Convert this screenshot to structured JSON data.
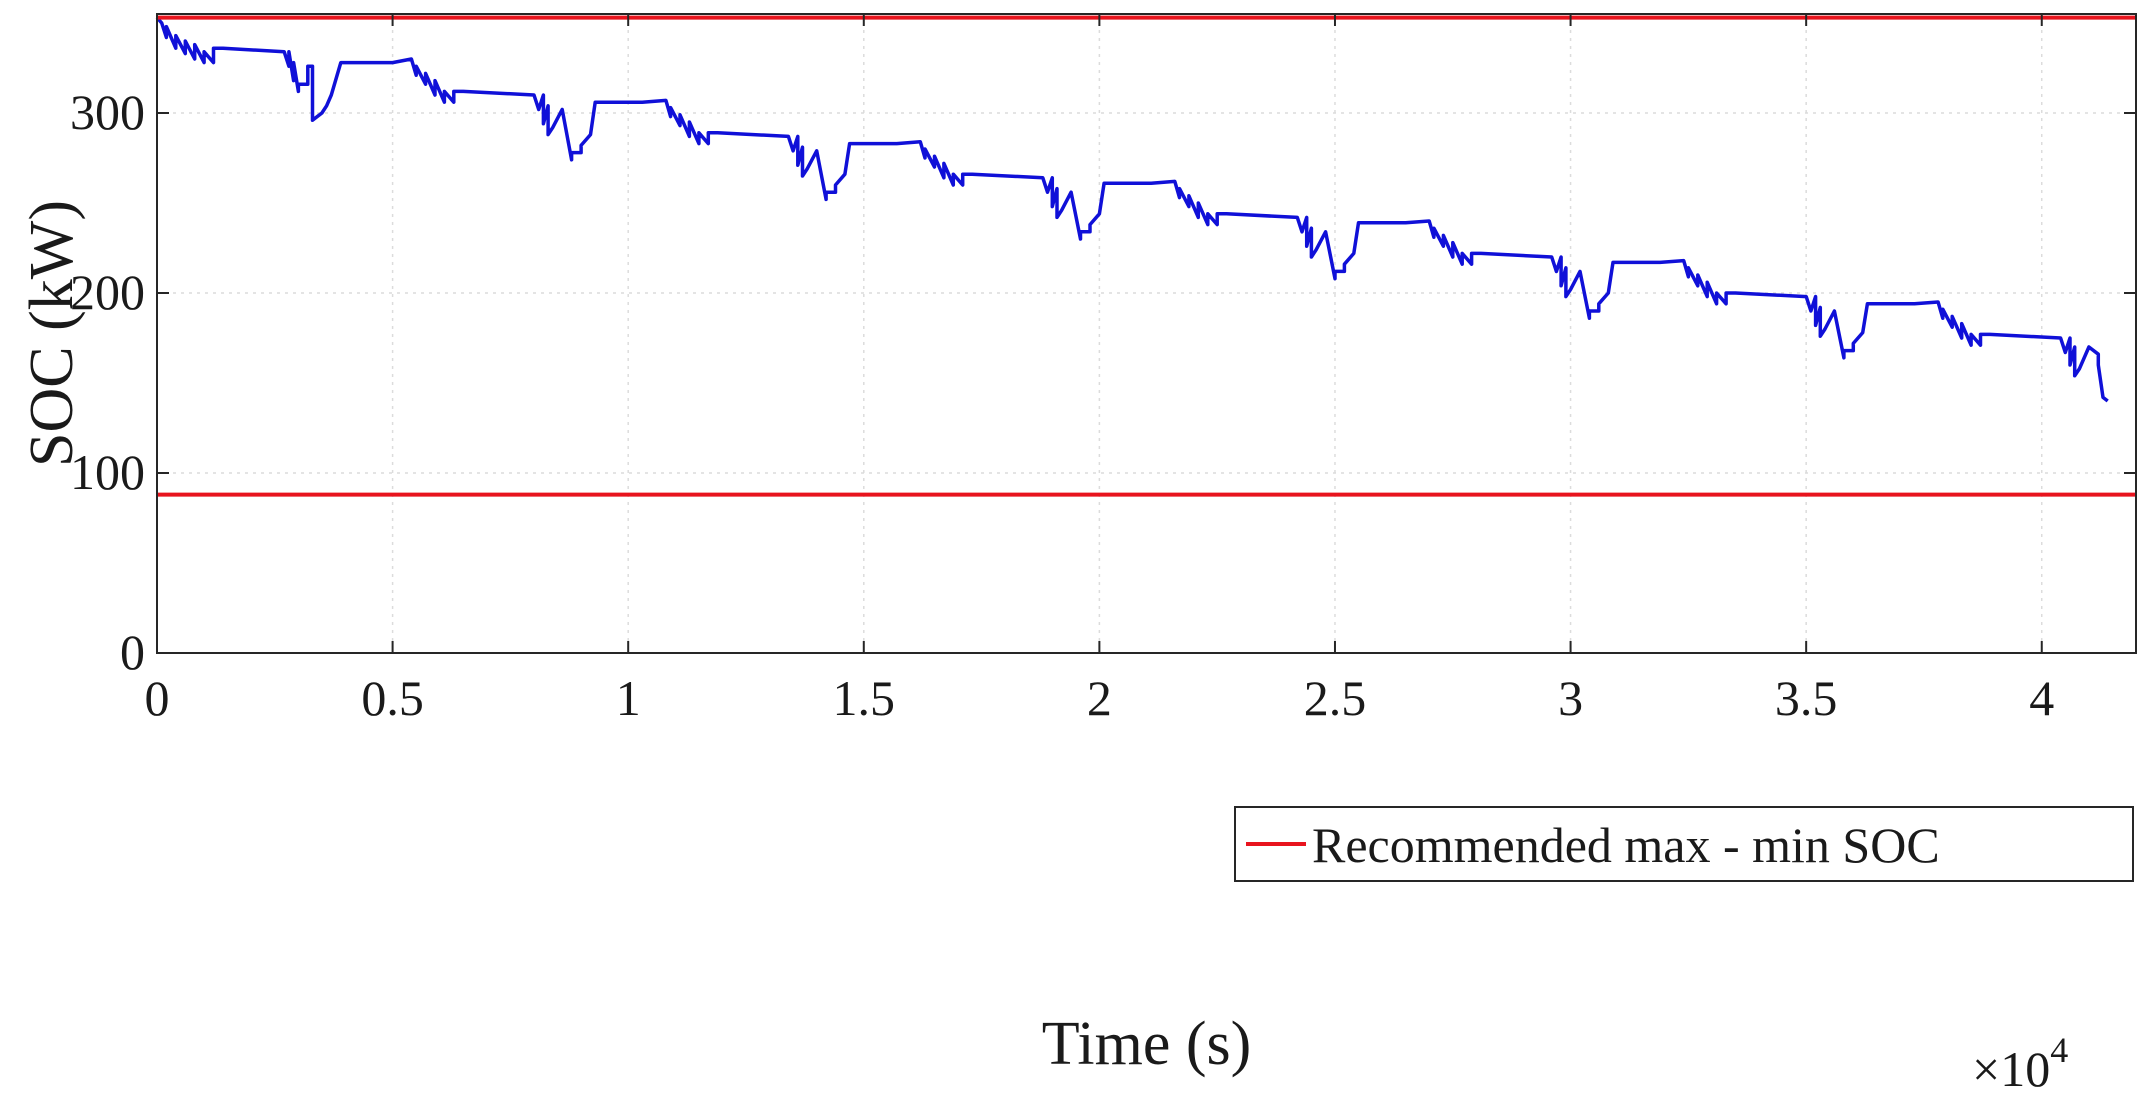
{
  "chart_data": {
    "type": "line",
    "title": "",
    "xlabel": "Time (s)",
    "ylabel": "SOC (kW)",
    "x_multiplier": {
      "times": "×10",
      "exponent": "4"
    },
    "xlim": [
      0,
      4.2
    ],
    "ylim": [
      0,
      355
    ],
    "x_ticks": [
      0,
      0.5,
      1,
      1.5,
      2,
      2.5,
      3,
      3.5,
      4
    ],
    "x_tick_labels": [
      "0",
      "0.5",
      "1",
      "1.5",
      "2",
      "2.5",
      "3",
      "3.5",
      "4"
    ],
    "y_ticks": [
      0,
      100,
      200,
      300
    ],
    "y_tick_labels": [
      "0",
      "100",
      "200",
      "300"
    ],
    "grid": true,
    "legend": {
      "placement": "bottom-right",
      "entries": [
        "Recommended max - min SOC"
      ]
    },
    "colors": {
      "soc": "#1010d8",
      "limits": "#e8141e",
      "grid": "#dcdcdc"
    },
    "series": [
      {
        "kind": "soc",
        "x": [
          0,
          0.01,
          0.02,
          0.02,
          0.04,
          0.04,
          0.06,
          0.06,
          0.08,
          0.08,
          0.1,
          0.1,
          0.12,
          0.12,
          0.14,
          0.14,
          0.27,
          0.28,
          0.28,
          0.29,
          0.29,
          0.3,
          0.3,
          0.32,
          0.32,
          0.33,
          0.33,
          0.35,
          0.35,
          0.36,
          0.37,
          0.39,
          0.5,
          0.54,
          0.55,
          0.55,
          0.57,
          0.57,
          0.59,
          0.59,
          0.61,
          0.61,
          0.63,
          0.63,
          0.65,
          0.65,
          0.8,
          0.81,
          0.82,
          0.82,
          0.83,
          0.83,
          0.84,
          0.84,
          0.86,
          0.86,
          0.88,
          0.88,
          0.9,
          0.9,
          0.92,
          0.93,
          1.03,
          1.08,
          1.09,
          1.09,
          1.11,
          1.11,
          1.13,
          1.13,
          1.15,
          1.15,
          1.17,
          1.17,
          1.19,
          1.19,
          1.34,
          1.35,
          1.36,
          1.36,
          1.37,
          1.37,
          1.38,
          1.38,
          1.4,
          1.4,
          1.42,
          1.42,
          1.44,
          1.44,
          1.46,
          1.47,
          1.57,
          1.62,
          1.63,
          1.63,
          1.65,
          1.65,
          1.67,
          1.67,
          1.69,
          1.69,
          1.71,
          1.71,
          1.73,
          1.73,
          1.88,
          1.89,
          1.9,
          1.9,
          1.91,
          1.91,
          1.92,
          1.92,
          1.94,
          1.94,
          1.96,
          1.96,
          1.98,
          1.98,
          2.0,
          2.01,
          2.11,
          2.16,
          2.17,
          2.17,
          2.19,
          2.19,
          2.21,
          2.21,
          2.23,
          2.23,
          2.25,
          2.25,
          2.27,
          2.27,
          2.42,
          2.43,
          2.44,
          2.44,
          2.45,
          2.45,
          2.46,
          2.46,
          2.48,
          2.48,
          2.5,
          2.5,
          2.52,
          2.52,
          2.54,
          2.55,
          2.65,
          2.7,
          2.71,
          2.71,
          2.73,
          2.73,
          2.75,
          2.75,
          2.77,
          2.77,
          2.79,
          2.79,
          2.81,
          2.81,
          2.96,
          2.97,
          2.98,
          2.98,
          2.99,
          2.99,
          3.0,
          3.0,
          3.02,
          3.02,
          3.04,
          3.04,
          3.06,
          3.06,
          3.08,
          3.09,
          3.19,
          3.24,
          3.25,
          3.25,
          3.27,
          3.27,
          3.29,
          3.29,
          3.31,
          3.31,
          3.33,
          3.33,
          3.35,
          3.35,
          3.5,
          3.51,
          3.52,
          3.52,
          3.53,
          3.53,
          3.54,
          3.54,
          3.56,
          3.56,
          3.58,
          3.58,
          3.6,
          3.6,
          3.62,
          3.63,
          3.73,
          3.78,
          3.79,
          3.79,
          3.81,
          3.81,
          3.83,
          3.83,
          3.85,
          3.85,
          3.87,
          3.87,
          3.89,
          3.89,
          4.04,
          4.05,
          4.06,
          4.06,
          4.07,
          4.07,
          4.08,
          4.08,
          4.1,
          4.1,
          4.12,
          4.12,
          4.13,
          4.14
        ],
        "y": [
          353,
          350,
          342,
          348,
          336,
          343,
          333,
          340,
          330,
          338,
          328,
          334,
          328,
          336,
          336,
          336,
          334,
          326,
          334,
          318,
          328,
          312,
          316,
          316,
          326,
          326,
          296,
          300,
          300,
          304,
          310,
          328,
          328,
          330,
          321,
          326,
          316,
          322,
          310,
          318,
          306,
          312,
          306,
          312,
          312,
          312,
          310,
          302,
          310,
          294,
          304,
          288,
          292,
          292,
          302,
          302,
          274,
          278,
          278,
          282,
          288,
          306,
          306,
          307,
          298,
          303,
          293,
          299,
          287,
          295,
          283,
          289,
          283,
          289,
          289,
          289,
          287,
          279,
          287,
          271,
          281,
          265,
          269,
          269,
          279,
          279,
          252,
          256,
          256,
          260,
          266,
          283,
          283,
          284,
          275,
          280,
          270,
          276,
          264,
          272,
          260,
          266,
          260,
          266,
          266,
          266,
          264,
          256,
          264,
          248,
          258,
          242,
          246,
          246,
          256,
          256,
          230,
          234,
          234,
          238,
          244,
          261,
          261,
          262,
          253,
          258,
          248,
          254,
          242,
          250,
          238,
          244,
          238,
          244,
          244,
          244,
          242,
          234,
          242,
          226,
          236,
          220,
          224,
          224,
          234,
          234,
          208,
          212,
          212,
          216,
          222,
          239,
          239,
          240,
          231,
          236,
          226,
          232,
          220,
          228,
          216,
          222,
          216,
          222,
          222,
          222,
          220,
          212,
          220,
          204,
          214,
          198,
          202,
          202,
          212,
          212,
          186,
          190,
          190,
          194,
          200,
          217,
          217,
          218,
          209,
          214,
          204,
          210,
          198,
          206,
          194,
          200,
          194,
          200,
          200,
          200,
          198,
          190,
          198,
          182,
          192,
          176,
          180,
          180,
          190,
          190,
          164,
          168,
          168,
          172,
          178,
          194,
          194,
          195,
          186,
          191,
          181,
          187,
          175,
          183,
          171,
          177,
          171,
          177,
          177,
          177,
          175,
          167,
          175,
          160,
          170,
          154,
          158,
          158,
          170,
          170,
          166,
          160,
          142,
          140
        ]
      },
      {
        "kind": "limit",
        "x": [
          0,
          4.2
        ],
        "y": [
          353,
          353
        ]
      },
      {
        "kind": "limit",
        "x": [
          0,
          4.2
        ],
        "y": [
          88,
          88
        ]
      }
    ]
  }
}
